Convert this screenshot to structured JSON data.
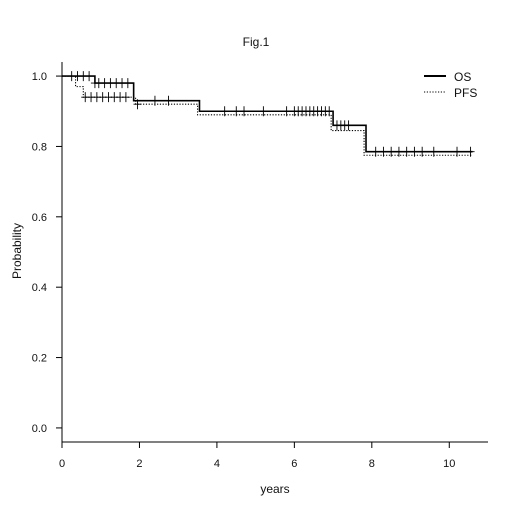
{
  "chart_data": {
    "type": "line",
    "title": "Fig.1",
    "xlabel": "years",
    "ylabel": "Probability",
    "xlim": [
      0,
      11
    ],
    "ylim": [
      -0.04,
      1.04
    ],
    "xticks": [
      0,
      2,
      4,
      6,
      8,
      10
    ],
    "xtick_labels": [
      "0",
      "2",
      "4",
      "6",
      "8",
      "10"
    ],
    "yticks": [
      0.0,
      0.2,
      0.4,
      0.6,
      0.8,
      1.0
    ],
    "ytick_labels": [
      "0.0",
      "0.2",
      "0.4",
      "0.6",
      "0.8",
      "1.0"
    ],
    "legend": {
      "position": "top-right"
    },
    "grid": false,
    "series": [
      {
        "name": "OS",
        "line_style": "solid",
        "color": "#000000",
        "steps": [
          [
            0,
            1.0
          ],
          [
            0.85,
            0.98
          ],
          [
            1.85,
            0.93
          ],
          [
            3.55,
            0.9
          ],
          [
            7.0,
            0.86
          ],
          [
            7.85,
            0.785
          ],
          [
            10.6,
            0.785
          ]
        ],
        "censor_x": [
          0.25,
          0.4,
          0.55,
          0.7,
          0.85,
          0.95,
          1.1,
          1.25,
          1.4,
          1.55,
          1.7,
          2.4,
          2.75,
          4.2,
          4.5,
          4.7,
          5.2,
          5.8,
          6.0,
          6.1,
          6.2,
          6.3,
          6.4,
          6.5,
          6.6,
          6.7,
          6.8,
          6.9,
          7.1,
          7.2,
          7.3,
          7.4,
          8.1,
          8.3,
          8.5,
          8.7,
          8.9,
          9.1,
          9.3,
          9.6,
          10.2,
          10.55
        ]
      },
      {
        "name": "PFS",
        "line_style": "dotted",
        "color": "#000000",
        "steps": [
          [
            0,
            1.0
          ],
          [
            0.35,
            0.97
          ],
          [
            0.55,
            0.94
          ],
          [
            1.9,
            0.92
          ],
          [
            3.5,
            0.89
          ],
          [
            6.95,
            0.845
          ],
          [
            7.8,
            0.775
          ],
          [
            10.6,
            0.775
          ]
        ],
        "censor_x": [
          0.6,
          0.75,
          0.9,
          1.05,
          1.2,
          1.35,
          1.5,
          1.65,
          1.95
        ]
      }
    ]
  }
}
